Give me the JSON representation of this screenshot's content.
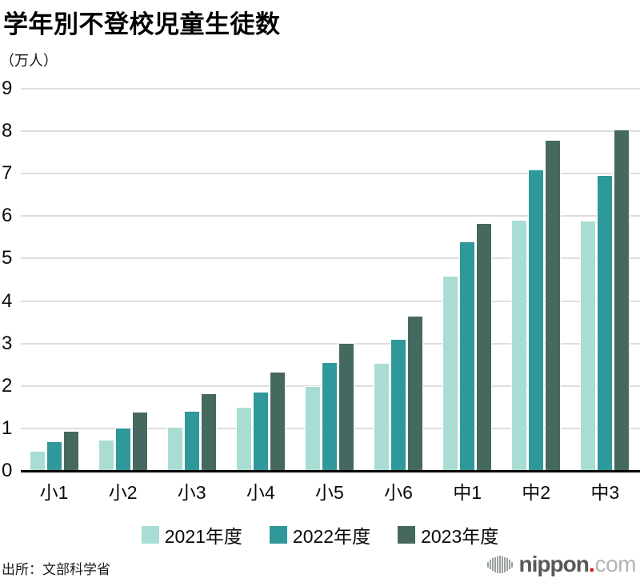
{
  "chart_data": {
    "type": "bar",
    "title": "学年別不登校児童生徒数",
    "ylabel_unit": "（万人）",
    "categories": [
      "小1",
      "小2",
      "小3",
      "小4",
      "小5",
      "小6",
      "中1",
      "中2",
      "中3"
    ],
    "series": [
      {
        "name": "2021年度",
        "color": "#a9ddd4",
        "values": [
          0.45,
          0.71,
          1.02,
          1.48,
          1.97,
          2.53,
          4.58,
          5.89,
          5.88
        ]
      },
      {
        "name": "2022年度",
        "color": "#2e989a",
        "values": [
          0.67,
          1.0,
          1.4,
          1.85,
          2.54,
          3.08,
          5.38,
          7.08,
          6.94
        ]
      },
      {
        "name": "2023年度",
        "color": "#46695f",
        "values": [
          0.92,
          1.37,
          1.81,
          2.31,
          2.99,
          3.64,
          5.81,
          7.77,
          8.03
        ]
      }
    ],
    "ylim": [
      0,
      9
    ],
    "yticks": [
      0,
      1,
      2,
      3,
      4,
      5,
      6,
      7,
      8,
      9
    ],
    "grid": true,
    "gridline_color": "#dedede",
    "axis_color": "#000000",
    "legend_position": "bottom"
  },
  "footer": {
    "source": "出所：文部科学省"
  },
  "logo": {
    "mark_icon": "equalizer-bars-icon",
    "brand_bold": "nippon",
    "brand_dot": ".",
    "brand_tld": "com",
    "dot_color": "#dc000c"
  }
}
